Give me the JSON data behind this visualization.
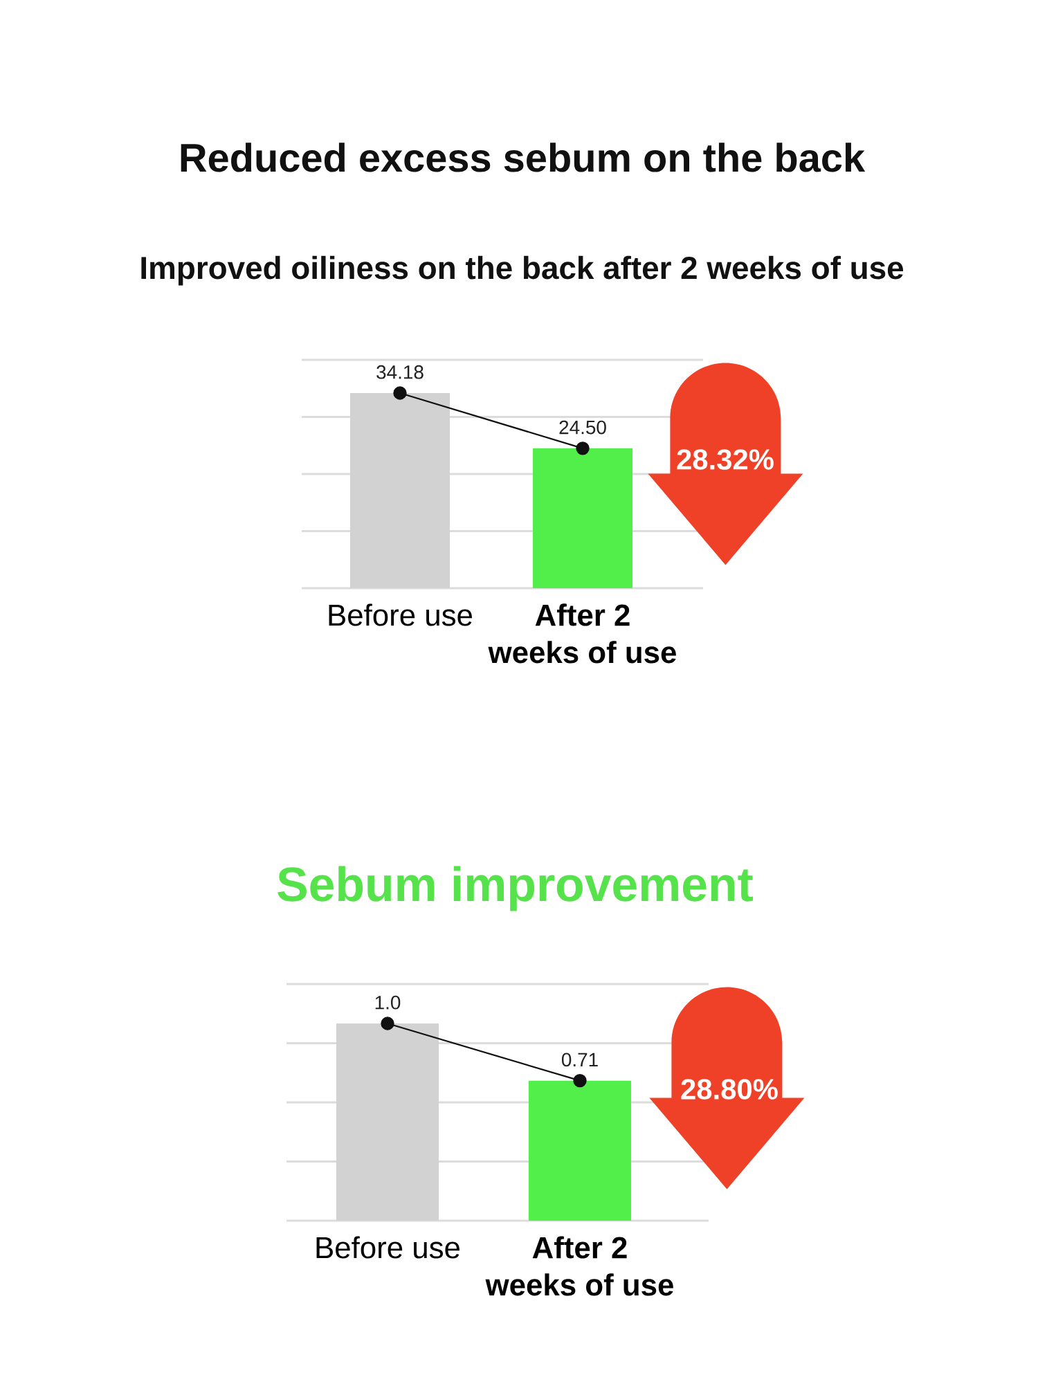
{
  "chart_data": [
    {
      "type": "bar",
      "title": "Reduced excess sebum on the back",
      "subtitle": "Improved oiliness on the back after 2 weeks of use",
      "categories": [
        "Before use",
        "After 2 weeks of use"
      ],
      "series": [
        {
          "colors": [
            "#d2d2d2",
            "#52ee4a"
          ],
          "values": [
            34.18,
            24.5
          ]
        },
        {
          "type": "line",
          "color": "#111111",
          "marker": "circle",
          "values": [
            34.18,
            24.5
          ],
          "value_labels": [
            "34.18",
            "24.50"
          ]
        }
      ],
      "ylim": [
        0,
        40
      ],
      "yticks": [
        {
          "value": 0,
          "label": null
        },
        {
          "value": 10,
          "label": null
        },
        {
          "value": 20,
          "label": null
        },
        {
          "value": 30,
          "label": null
        },
        {
          "value": 40,
          "label": null
        }
      ],
      "grid": "y",
      "tick_labels": "x",
      "annotations": [
        "28.32%"
      ]
    },
    {
      "type": "bar",
      "title": "Sebum improvement",
      "categories": [
        "Before use",
        "After 2 weeks of use"
      ],
      "series": [
        {
          "colors": [
            "#d2d2d2",
            "#52ee4a"
          ],
          "values": [
            1.0,
            0.71
          ]
        },
        {
          "type": "line",
          "color": "#111111",
          "marker": "circle",
          "values": [
            1.0,
            0.71
          ],
          "value_labels": [
            "1.0",
            "0.71"
          ]
        }
      ],
      "ylim": [
        0,
        1.2
      ],
      "yticks": [
        {
          "value": 0,
          "label": null
        },
        {
          "value": 0.3,
          "label": null
        },
        {
          "value": 0.6,
          "label": null
        },
        {
          "value": 0.9,
          "label": null
        },
        {
          "value": 1.2,
          "label": null
        }
      ],
      "grid": "y",
      "tick_labels": "x",
      "annotations": [
        "28.80%"
      ]
    }
  ]
}
